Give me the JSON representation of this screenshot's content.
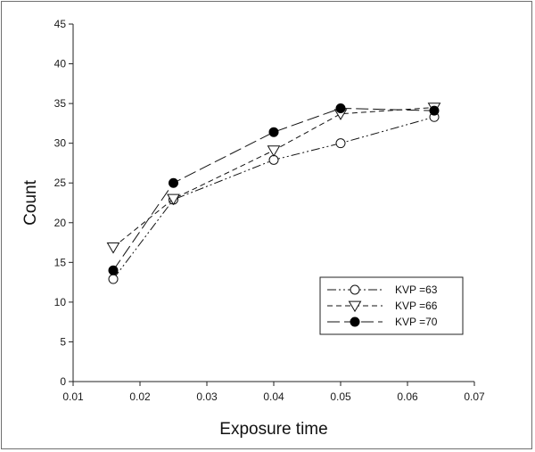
{
  "chart_data": {
    "type": "line",
    "title": "",
    "xlabel": "Exposure time",
    "ylabel": "Count",
    "xlim": [
      0.01,
      0.07
    ],
    "ylim": [
      0,
      45
    ],
    "xticks": [
      "0.01",
      "0.02",
      "0.03",
      "0.04",
      "0.05",
      "0.06",
      "0.07"
    ],
    "yticks": [
      "0",
      "5",
      "10",
      "15",
      "20",
      "25",
      "30",
      "35",
      "40",
      "45"
    ],
    "x": [
      0.016,
      0.025,
      0.04,
      0.05,
      0.064
    ],
    "grid": false,
    "legend_position": "bottom-right",
    "series": [
      {
        "name": "KVP =63",
        "marker": "open-circle",
        "dash": "dash-dot-dot",
        "values": [
          12.9,
          22.9,
          27.9,
          30.0,
          33.3
        ]
      },
      {
        "name": "KVP =66",
        "marker": "open-triangle-down",
        "dash": "dashed",
        "values": [
          16.9,
          23.0,
          29.1,
          33.7,
          34.5
        ]
      },
      {
        "name": "KVP =70",
        "marker": "filled-circle",
        "dash": "long-dashed",
        "values": [
          14.0,
          25.0,
          31.4,
          34.4,
          34.1
        ]
      }
    ]
  }
}
